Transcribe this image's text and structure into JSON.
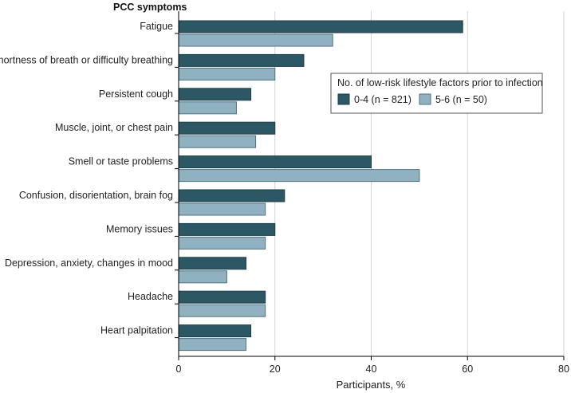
{
  "chart_data": {
    "type": "bar",
    "orientation": "horizontal",
    "title": "",
    "ylabel": "PCC symptoms",
    "xlabel": "Participants, %",
    "xlim": [
      0,
      80
    ],
    "xticks": [
      "0",
      "20",
      "40",
      "60",
      "80"
    ],
    "grid": true,
    "categories": [
      "Fatigue",
      "Shortness of breath or difficulty breathing",
      "Persistent cough",
      "Muscle, joint, or chest pain",
      "Smell or taste problems",
      "Confusion, disorientation, brain fog",
      "Memory issues",
      "Depression, anxiety, changes in mood",
      "Headache",
      "Heart palpitation"
    ],
    "series": [
      {
        "name": "0-4 (n = 821)",
        "color": "#2c5866",
        "values": [
          59,
          26,
          15,
          20,
          40,
          22,
          20,
          14,
          18,
          15
        ]
      },
      {
        "name": "5-6 (n = 50)",
        "color": "#8fb1c0",
        "values": [
          32,
          20,
          12,
          16,
          50,
          18,
          18,
          10,
          18,
          14
        ]
      }
    ],
    "legend": {
      "title": "No. of low-risk lifestyle factors prior to infection",
      "placement": "right"
    }
  }
}
